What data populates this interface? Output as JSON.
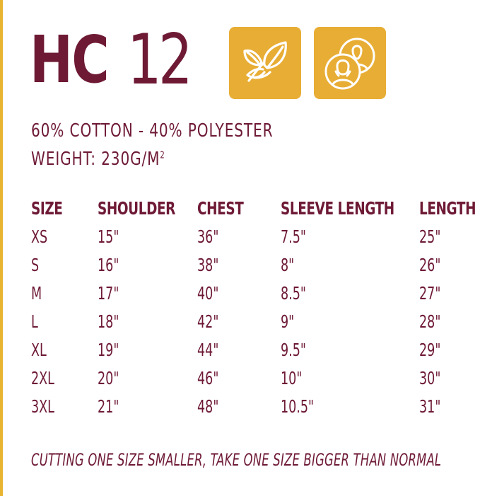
{
  "title": {
    "code": "HC",
    "number": "12"
  },
  "badges": [
    {
      "icon": "leaf-icon",
      "color": "#e8ad34"
    },
    {
      "icon": "people-icon",
      "color": "#e8ad34"
    }
  ],
  "specs": {
    "material": "60% COTTON - 40% POLYESTER",
    "weight": "WEIGHT: 230G/M",
    "weight_sup": "2"
  },
  "table": {
    "headers": [
      "SIZE",
      "SHOULDER",
      "CHEST",
      "SLEEVE LENGTH",
      "LENGTH"
    ],
    "rows": [
      [
        "XS",
        "15\"",
        "36\"",
        "7.5\"",
        "25\""
      ],
      [
        "S",
        "16\"",
        "38\"",
        "8\"",
        "26\""
      ],
      [
        "M",
        "17\"",
        "40\"",
        "8.5\"",
        "27\""
      ],
      [
        "L",
        "18\"",
        "42\"",
        "9\"",
        "28\""
      ],
      [
        "XL",
        "19\"",
        "44\"",
        "9.5\"",
        "29\""
      ],
      [
        "2XL",
        "20\"",
        "46\"",
        "10\"",
        "30\""
      ],
      [
        "3XL",
        "21\"",
        "48\"",
        "10.5\"",
        "31\""
      ]
    ]
  },
  "footnote": "CUTTING ONE SIZE SMALLER, TAKE ONE SIZE BIGGER THAN NORMAL",
  "colors": {
    "brand": "#6e1a35",
    "accent": "#e8ad34"
  }
}
